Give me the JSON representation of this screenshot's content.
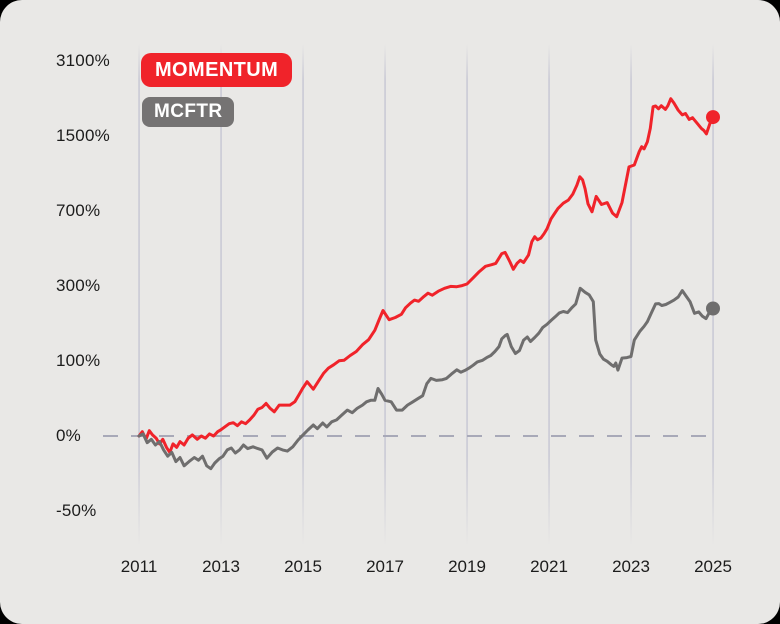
{
  "colors": {
    "card_background": "#e9e8e6",
    "grid_line": "#c6c6d3",
    "zero_dash_line": "#a8a9b8",
    "axis_text": "#1c1c1c",
    "momentum_red": "#f0232a",
    "mcftr_gray": "#6f6e6e",
    "badge_gray": "#757373",
    "badge_text": "#ffffff"
  },
  "chart_data": {
    "type": "line",
    "title": "",
    "xlabel": "",
    "ylabel": "",
    "x_range": [
      2011,
      2025
    ],
    "y_scale": "logarithmic (each step doubles 1+value/100)",
    "grid": "vertical-only",
    "legend_position": "top-left",
    "zero_line_dashed": true,
    "x_tick_labels": [
      "2011",
      "2013",
      "2015",
      "2017",
      "2019",
      "2021",
      "2023",
      "2025"
    ],
    "y_tick_labels": [
      "3100%",
      "1500%",
      "700%",
      "300%",
      "100%",
      "0%",
      "-50%"
    ],
    "series": [
      {
        "name": "MOMENTUM",
        "color": "#f0232a",
        "end_value_pct": 1790,
        "points": [
          [
            2011.0,
            0
          ],
          [
            2011.08,
            4
          ],
          [
            2011.17,
            -3
          ],
          [
            2011.25,
            5
          ],
          [
            2011.33,
            1
          ],
          [
            2011.42,
            -2
          ],
          [
            2011.5,
            -7
          ],
          [
            2011.58,
            -3
          ],
          [
            2011.67,
            -10
          ],
          [
            2011.75,
            -14
          ],
          [
            2011.83,
            -7
          ],
          [
            2011.92,
            -10
          ],
          [
            2012.0,
            -5
          ],
          [
            2012.1,
            -8
          ],
          [
            2012.2,
            -2
          ],
          [
            2012.3,
            1
          ],
          [
            2012.42,
            -3
          ],
          [
            2012.52,
            0
          ],
          [
            2012.62,
            -2
          ],
          [
            2012.72,
            2
          ],
          [
            2012.82,
            0
          ],
          [
            2012.92,
            4
          ],
          [
            2013.0,
            6
          ],
          [
            2013.1,
            9
          ],
          [
            2013.2,
            12
          ],
          [
            2013.3,
            13
          ],
          [
            2013.4,
            10
          ],
          [
            2013.5,
            14
          ],
          [
            2013.6,
            12
          ],
          [
            2013.7,
            16
          ],
          [
            2013.8,
            21
          ],
          [
            2013.9,
            28
          ],
          [
            2014.0,
            30
          ],
          [
            2014.1,
            35
          ],
          [
            2014.2,
            29
          ],
          [
            2014.3,
            25
          ],
          [
            2014.42,
            33
          ],
          [
            2014.55,
            33
          ],
          [
            2014.68,
            33
          ],
          [
            2014.8,
            37
          ],
          [
            2014.9,
            46
          ],
          [
            2015.0,
            56
          ],
          [
            2015.1,
            65
          ],
          [
            2015.25,
            54
          ],
          [
            2015.4,
            68
          ],
          [
            2015.5,
            78
          ],
          [
            2015.62,
            87
          ],
          [
            2015.75,
            93
          ],
          [
            2015.88,
            100
          ],
          [
            2016.0,
            101
          ],
          [
            2016.15,
            110
          ],
          [
            2016.3,
            118
          ],
          [
            2016.45,
            132
          ],
          [
            2016.6,
            143
          ],
          [
            2016.75,
            165
          ],
          [
            2016.85,
            190
          ],
          [
            2016.95,
            218
          ],
          [
            2017.1,
            192
          ],
          [
            2017.25,
            198
          ],
          [
            2017.4,
            207
          ],
          [
            2017.5,
            226
          ],
          [
            2017.62,
            240
          ],
          [
            2017.72,
            250
          ],
          [
            2017.82,
            246
          ],
          [
            2017.95,
            262
          ],
          [
            2018.05,
            273
          ],
          [
            2018.15,
            266
          ],
          [
            2018.3,
            280
          ],
          [
            2018.45,
            290
          ],
          [
            2018.6,
            297
          ],
          [
            2018.75,
            296
          ],
          [
            2018.88,
            300
          ],
          [
            2019.0,
            306
          ],
          [
            2019.15,
            330
          ],
          [
            2019.3,
            355
          ],
          [
            2019.45,
            378
          ],
          [
            2019.6,
            385
          ],
          [
            2019.7,
            391
          ],
          [
            2019.85,
            437
          ],
          [
            2019.93,
            443
          ],
          [
            2020.05,
            397
          ],
          [
            2020.13,
            365
          ],
          [
            2020.22,
            391
          ],
          [
            2020.3,
            405
          ],
          [
            2020.38,
            395
          ],
          [
            2020.5,
            430
          ],
          [
            2020.58,
            499
          ],
          [
            2020.65,
            528
          ],
          [
            2020.72,
            510
          ],
          [
            2020.8,
            520
          ],
          [
            2020.88,
            546
          ],
          [
            2020.95,
            575
          ],
          [
            2021.05,
            640
          ],
          [
            2021.12,
            670
          ],
          [
            2021.22,
            715
          ],
          [
            2021.35,
            755
          ],
          [
            2021.47,
            780
          ],
          [
            2021.58,
            830
          ],
          [
            2021.68,
            910
          ],
          [
            2021.75,
            990
          ],
          [
            2021.82,
            960
          ],
          [
            2021.88,
            875
          ],
          [
            2021.95,
            750
          ],
          [
            2022.05,
            690
          ],
          [
            2022.15,
            810
          ],
          [
            2022.28,
            745
          ],
          [
            2022.42,
            760
          ],
          [
            2022.55,
            680
          ],
          [
            2022.65,
            655
          ],
          [
            2022.78,
            760
          ],
          [
            2022.95,
            1095
          ],
          [
            2023.08,
            1116
          ],
          [
            2023.2,
            1274
          ],
          [
            2023.26,
            1339
          ],
          [
            2023.32,
            1310
          ],
          [
            2023.4,
            1407
          ],
          [
            2023.47,
            1605
          ],
          [
            2023.54,
            1980
          ],
          [
            2023.6,
            1994
          ],
          [
            2023.67,
            1940
          ],
          [
            2023.74,
            2000
          ],
          [
            2023.84,
            1930
          ],
          [
            2023.9,
            2000
          ],
          [
            2023.97,
            2140
          ],
          [
            2024.05,
            2050
          ],
          [
            2024.15,
            1915
          ],
          [
            2024.25,
            1830
          ],
          [
            2024.33,
            1855
          ],
          [
            2024.42,
            1750
          ],
          [
            2024.5,
            1780
          ],
          [
            2024.63,
            1672
          ],
          [
            2024.72,
            1600
          ],
          [
            2024.78,
            1570
          ],
          [
            2024.84,
            1520
          ],
          [
            2024.92,
            1672
          ],
          [
            2025.0,
            1790
          ]
        ]
      },
      {
        "name": "MCFTR",
        "color": "#6f6e6e",
        "end_value_pct": 224,
        "points": [
          [
            2011.0,
            0
          ],
          [
            2011.1,
            2
          ],
          [
            2011.2,
            -6
          ],
          [
            2011.3,
            -3
          ],
          [
            2011.4,
            -8
          ],
          [
            2011.5,
            -5
          ],
          [
            2011.6,
            -12
          ],
          [
            2011.7,
            -17
          ],
          [
            2011.8,
            -14
          ],
          [
            2011.9,
            -21
          ],
          [
            2012.0,
            -18
          ],
          [
            2012.1,
            -24
          ],
          [
            2012.22,
            -21
          ],
          [
            2012.35,
            -18
          ],
          [
            2012.45,
            -20
          ],
          [
            2012.55,
            -17
          ],
          [
            2012.65,
            -24
          ],
          [
            2012.75,
            -26
          ],
          [
            2012.85,
            -22
          ],
          [
            2012.95,
            -19
          ],
          [
            2013.05,
            -17
          ],
          [
            2013.15,
            -12
          ],
          [
            2013.25,
            -10.5
          ],
          [
            2013.35,
            -14.5
          ],
          [
            2013.45,
            -12
          ],
          [
            2013.55,
            -8
          ],
          [
            2013.65,
            -11
          ],
          [
            2013.78,
            -9.5
          ],
          [
            2013.9,
            -11
          ],
          [
            2014.0,
            -12
          ],
          [
            2014.12,
            -18.5
          ],
          [
            2014.25,
            -13.7
          ],
          [
            2014.38,
            -10.5
          ],
          [
            2014.5,
            -12
          ],
          [
            2014.62,
            -13
          ],
          [
            2014.75,
            -9.5
          ],
          [
            2014.88,
            -3.6
          ],
          [
            2015.0,
            1
          ],
          [
            2015.12,
            5.7
          ],
          [
            2015.25,
            10.7
          ],
          [
            2015.35,
            7
          ],
          [
            2015.48,
            12.7
          ],
          [
            2015.58,
            8.7
          ],
          [
            2015.7,
            14
          ],
          [
            2015.82,
            16
          ],
          [
            2015.95,
            21.5
          ],
          [
            2016.08,
            27
          ],
          [
            2016.2,
            24
          ],
          [
            2016.32,
            29
          ],
          [
            2016.45,
            33
          ],
          [
            2016.55,
            37
          ],
          [
            2016.65,
            39
          ],
          [
            2016.75,
            39
          ],
          [
            2016.83,
            55
          ],
          [
            2016.92,
            47
          ],
          [
            2017.0,
            39
          ],
          [
            2017.15,
            37
          ],
          [
            2017.28,
            27
          ],
          [
            2017.42,
            27
          ],
          [
            2017.55,
            33
          ],
          [
            2017.68,
            37
          ],
          [
            2017.8,
            41
          ],
          [
            2017.92,
            45
          ],
          [
            2018.02,
            62
          ],
          [
            2018.12,
            70
          ],
          [
            2018.25,
            67
          ],
          [
            2018.4,
            68
          ],
          [
            2018.5,
            70
          ],
          [
            2018.62,
            77
          ],
          [
            2018.75,
            84
          ],
          [
            2018.85,
            80
          ],
          [
            2018.95,
            83
          ],
          [
            2019.05,
            87
          ],
          [
            2019.15,
            92
          ],
          [
            2019.25,
            98
          ],
          [
            2019.38,
            101
          ],
          [
            2019.48,
            106
          ],
          [
            2019.58,
            110
          ],
          [
            2019.68,
            118
          ],
          [
            2019.78,
            128
          ],
          [
            2019.85,
            145
          ],
          [
            2019.93,
            152
          ],
          [
            2019.98,
            155
          ],
          [
            2020.08,
            128
          ],
          [
            2020.18,
            114
          ],
          [
            2020.28,
            120
          ],
          [
            2020.38,
            142
          ],
          [
            2020.47,
            149
          ],
          [
            2020.55,
            139
          ],
          [
            2020.65,
            148
          ],
          [
            2020.75,
            158
          ],
          [
            2020.85,
            172
          ],
          [
            2020.95,
            180
          ],
          [
            2021.05,
            190
          ],
          [
            2021.15,
            200
          ],
          [
            2021.25,
            211
          ],
          [
            2021.35,
            215
          ],
          [
            2021.45,
            212
          ],
          [
            2021.55,
            225
          ],
          [
            2021.65,
            238
          ],
          [
            2021.76,
            290
          ],
          [
            2021.88,
            276
          ],
          [
            2021.98,
            267
          ],
          [
            2022.08,
            245
          ],
          [
            2022.14,
            142
          ],
          [
            2022.24,
            113
          ],
          [
            2022.33,
            103
          ],
          [
            2022.42,
            99
          ],
          [
            2022.52,
            93
          ],
          [
            2022.58,
            90
          ],
          [
            2022.63,
            96
          ],
          [
            2022.68,
            83.5
          ],
          [
            2022.78,
            105
          ],
          [
            2022.9,
            106
          ],
          [
            2023.0,
            108
          ],
          [
            2023.08,
            142
          ],
          [
            2023.22,
            163
          ],
          [
            2023.32,
            175
          ],
          [
            2023.4,
            187
          ],
          [
            2023.5,
            212
          ],
          [
            2023.6,
            238
          ],
          [
            2023.68,
            239
          ],
          [
            2023.75,
            233
          ],
          [
            2023.85,
            236
          ],
          [
            2023.95,
            243
          ],
          [
            2024.05,
            250
          ],
          [
            2024.15,
            260
          ],
          [
            2024.25,
            282
          ],
          [
            2024.35,
            262
          ],
          [
            2024.44,
            245
          ],
          [
            2024.55,
            210
          ],
          [
            2024.65,
            214
          ],
          [
            2024.74,
            202
          ],
          [
            2024.83,
            195
          ],
          [
            2024.9,
            210
          ],
          [
            2025.0,
            224
          ]
        ]
      }
    ]
  }
}
